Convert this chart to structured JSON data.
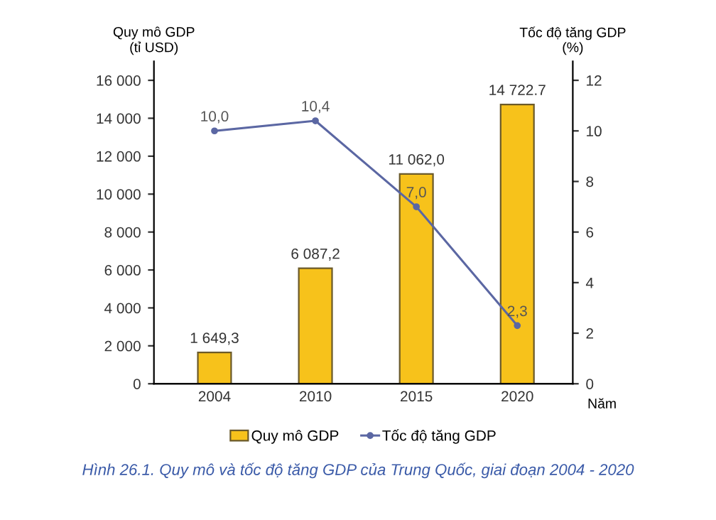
{
  "chart_data": {
    "type": "bar",
    "categories": [
      "2004",
      "2010",
      "2015",
      "2020"
    ],
    "ylabel": "Quy mô GDP\n(tỉ USD)",
    "y2label": "Tốc độ tăng GDP\n(%)",
    "xlabel": "Năm",
    "series": [
      {
        "name": "Quy mô GDP",
        "color": "#f7c21b",
        "values": [
          1649.3,
          6087.2,
          11062.0,
          14722.7
        ],
        "value_labels": [
          "1 649,3",
          "6 087,2",
          "11 062,0",
          "14 722.7"
        ]
      },
      {
        "name": "Tốc độ tăng GDP",
        "type": "line",
        "axis": "y2",
        "color": "#5b67a3",
        "marker": "circle",
        "values": [
          10.0,
          10.4,
          7.0,
          2.3
        ],
        "value_labels": [
          "10,0",
          "10,4",
          "7,0",
          "2,3"
        ]
      }
    ],
    "ylim": [
      0,
      17000
    ],
    "yticks": [
      {
        "value": 0,
        "label": "0"
      },
      {
        "value": 2000,
        "label": "2 000"
      },
      {
        "value": 4000,
        "label": "4 000"
      },
      {
        "value": 6000,
        "label": "6 000"
      },
      {
        "value": 8000,
        "label": "8 000"
      },
      {
        "value": 10000,
        "label": "10 000"
      },
      {
        "value": 12000,
        "label": "12 000"
      },
      {
        "value": 14000,
        "label": "14 000"
      },
      {
        "value": 16000,
        "label": "16 000"
      }
    ],
    "y2lim": [
      0,
      12.75
    ],
    "y2ticks": [
      0,
      2,
      4,
      6,
      8,
      10,
      12
    ],
    "legend": "bottom",
    "grid": false,
    "annotations": [
      "Hình 26.1. Quy mô và tốc độ tăng GDP của Trung Quốc, giai đoạn 2004 - 2020"
    ]
  }
}
